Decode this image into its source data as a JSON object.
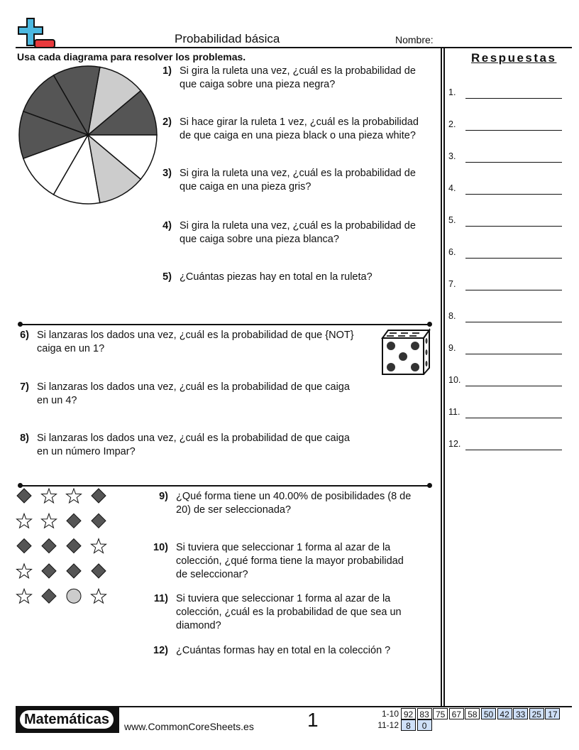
{
  "header": {
    "title": "Probabilidad básica",
    "name_label": "Nombre:",
    "instructions": "Usa cada diagrama para resolver los problemas.",
    "logo_colors": {
      "plus": "#4bb8e0",
      "minus": "#e8393c"
    }
  },
  "spinner": {
    "slices_ccw_from_east": [
      "black",
      "gray",
      "black",
      "black",
      "black",
      "white",
      "white",
      "gray",
      "white"
    ],
    "colors": {
      "black": "#555555",
      "gray": "#cccccc",
      "white": "#ffffff"
    }
  },
  "questions": [
    {
      "num": "1)",
      "lines": [
        "Si gira la ruleta una vez, ¿cuál es la probabilidad de",
        "que caiga sobre una pieza negra?"
      ]
    },
    {
      "num": "2)",
      "lines": [
        "Si hace girar la ruleta 1 vez, ¿cuál es la probabilidad",
        "de que caiga en una pieza black o una pieza white?"
      ]
    },
    {
      "num": "3)",
      "lines": [
        "Si gira la ruleta una vez, ¿cuál es la probabilidad de",
        "que caiga en una pieza gris?"
      ]
    },
    {
      "num": "4)",
      "lines": [
        "Si gira la ruleta una vez, ¿cuál es la probabilidad de",
        "que caiga sobre una pieza blanca?"
      ]
    },
    {
      "num": "5)",
      "lines": [
        "¿Cuántas piezas hay en total en la ruleta?"
      ]
    },
    {
      "num": "6)",
      "lines": [
        "Si lanzaras los dados una vez, ¿cuál es la probabilidad de que {NOT}",
        "caiga en un 1?"
      ]
    },
    {
      "num": "7)",
      "lines": [
        "Si lanzaras los dados una vez, ¿cuál es la probabilidad de que caiga",
        "en un 4?"
      ]
    },
    {
      "num": "8)",
      "lines": [
        "Si lanzaras los dados una vez, ¿cuál es la probabilidad de que caiga",
        "en un número Impar?"
      ]
    },
    {
      "num": "9)",
      "lines": [
        "¿Qué forma tiene un 40.00% de posibilidades (8 de",
        "20) de ser seleccionada?"
      ]
    },
    {
      "num": "10)",
      "lines": [
        "Si tuviera que seleccionar 1 forma al azar de la",
        "colección, ¿qué forma tiene la mayor probabilidad",
        "de seleccionar?"
      ]
    },
    {
      "num": "11)",
      "lines": [
        "Si tuviera que seleccionar 1 forma al azar de la",
        "colección, ¿cuál es la probabilidad de que sea un",
        "diamond?"
      ]
    },
    {
      "num": "12)",
      "lines": [
        "¿Cuántas formas hay en total en la colección ?"
      ]
    }
  ],
  "shapes_grid": [
    [
      "diamond",
      "star",
      "star",
      "diamond"
    ],
    [
      "star",
      "star",
      "diamond",
      "diamond"
    ],
    [
      "diamond",
      "diamond",
      "diamond",
      "star"
    ],
    [
      "star",
      "diamond",
      "diamond",
      "diamond"
    ],
    [
      "star",
      "diamond",
      "circle",
      "star"
    ]
  ],
  "answers": {
    "title": "Respuestas",
    "labels": [
      "1.",
      "2.",
      "3.",
      "4.",
      "5.",
      "6.",
      "7.",
      "8.",
      "9.",
      "10.",
      "11.",
      "12."
    ]
  },
  "footer": {
    "brand": "Matemáticas",
    "url": "www.CommonCoreSheets.es",
    "page": "1",
    "score_rows": [
      {
        "label": "1-10",
        "values": [
          "92",
          "83",
          "75",
          "67",
          "58",
          "50",
          "42",
          "33",
          "25",
          "17"
        ]
      },
      {
        "label": "11-12",
        "values": [
          "8",
          "0"
        ]
      }
    ],
    "highlight_color": "#cfe0f8"
  }
}
